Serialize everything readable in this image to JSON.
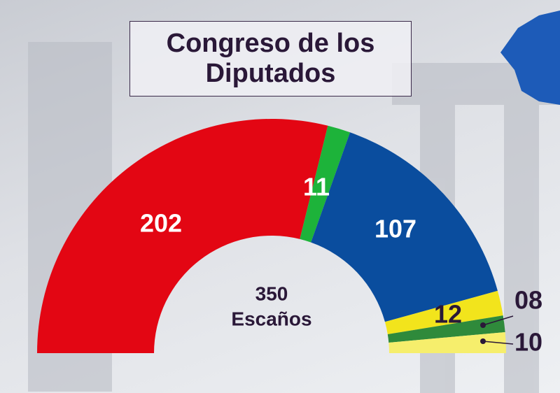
{
  "chart_data": {
    "type": "half-donut",
    "title": "Congreso de los Diputados",
    "center_value": 350,
    "center_label": "Escaños",
    "values": [
      202,
      11,
      107,
      12,
      8,
      10
    ],
    "value_labels": [
      "202",
      "11",
      "107",
      "12",
      "08",
      "10"
    ],
    "colors": [
      "#e30613",
      "#1db33a",
      "#0a4d9e",
      "#f2e41c",
      "#2f8a3b",
      "#f6ee6c"
    ]
  }
}
